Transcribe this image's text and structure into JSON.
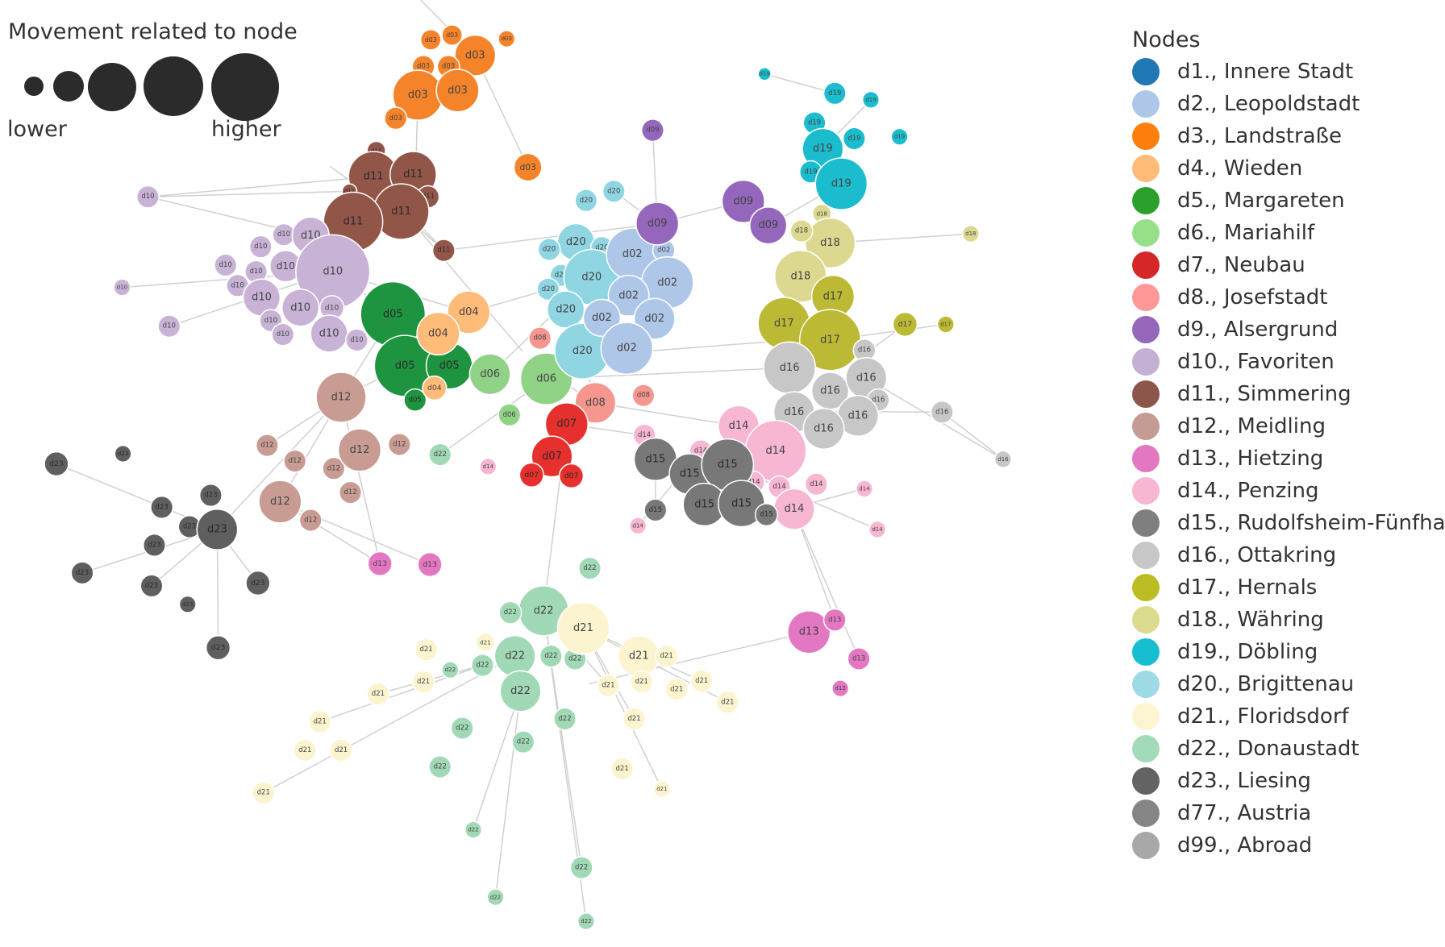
{
  "size_legend": {
    "title": "Movement related to node",
    "low_label": "lower",
    "high_label": "higher",
    "color": "#2b2b2b"
  },
  "legend": {
    "title": "Nodes",
    "items": [
      {
        "id": "d1",
        "label": "d1., Innere Stadt",
        "color": "#1f77b4"
      },
      {
        "id": "d2",
        "label": "d2., Leopoldstadt",
        "color": "#aec7e8"
      },
      {
        "id": "d3",
        "label": "d3., Landstraße",
        "color": "#ff7f0e"
      },
      {
        "id": "d4",
        "label": "d4., Wieden",
        "color": "#ffbb78"
      },
      {
        "id": "d5",
        "label": "d5., Margareten",
        "color": "#2ca02c"
      },
      {
        "id": "d6",
        "label": "d6., Mariahilf",
        "color": "#98df8a"
      },
      {
        "id": "d7",
        "label": "d7., Neubau",
        "color": "#d62728"
      },
      {
        "id": "d8",
        "label": "d8., Josefstadt",
        "color": "#ff9896"
      },
      {
        "id": "d9",
        "label": "d9., Alsergrund",
        "color": "#9467bd"
      },
      {
        "id": "d10",
        "label": "d10., Favoriten",
        "color": "#c5b0d5"
      },
      {
        "id": "d11",
        "label": "d11., Simmering",
        "color": "#8c564b"
      },
      {
        "id": "d12",
        "label": "d12., Meidling",
        "color": "#c49c94"
      },
      {
        "id": "d13",
        "label": "d13., Hietzing",
        "color": "#e377c2"
      },
      {
        "id": "d14",
        "label": "d14., Penzing",
        "color": "#f7b6d2"
      },
      {
        "id": "d15",
        "label": "d15., Rudolfsheim-Fünfhaus",
        "color": "#7f7f7f"
      },
      {
        "id": "d16",
        "label": "d16., Ottakring",
        "color": "#c7c7c7"
      },
      {
        "id": "d17",
        "label": "d17., Hernals",
        "color": "#bcbd22"
      },
      {
        "id": "d18",
        "label": "d18., Währing",
        "color": "#dbdb8d"
      },
      {
        "id": "d19",
        "label": "d19., Döbling",
        "color": "#17becf"
      },
      {
        "id": "d20",
        "label": "d20., Brigittenau",
        "color": "#9edae5"
      },
      {
        "id": "d21",
        "label": "d21., Floridsdorf",
        "color": "#fcf5cf"
      },
      {
        "id": "d22",
        "label": "d22., Donaustadt",
        "color": "#a3dab9"
      },
      {
        "id": "d23",
        "label": "d23., Liesing",
        "color": "#636363"
      },
      {
        "id": "d77",
        "label": "d77., Austria",
        "color": "#858585"
      },
      {
        "id": "d99",
        "label": "d99., Abroad",
        "color": "#a8a8a8"
      }
    ]
  },
  "graph": {
    "node_labels": {
      "d02": "d02",
      "d03": "d03",
      "d04": "d04",
      "d05": "d05",
      "d06": "d06",
      "d07": "d07",
      "d08": "d08",
      "d09": "d09",
      "d10": "d10",
      "d11": "d11",
      "d12": "d12",
      "d13": "d13",
      "d14": "d14",
      "d15": "d15",
      "d16": "d16",
      "d17": "d17",
      "d18": "d18",
      "d19": "d19",
      "d20": "d20",
      "d21": "d21",
      "d22": "d22",
      "d23": "d23"
    },
    "node_colors": {
      "d02": "#aec7e8",
      "d03": "#f5832a",
      "d04": "#ffbb78",
      "d05": "#1e9440",
      "d06": "#90d286",
      "d07": "#e6302d",
      "d08": "#f5968f",
      "d09": "#9467bd",
      "d10": "#c8b3d6",
      "d11": "#925649",
      "d12": "#c99c93",
      "d13": "#e377c2",
      "d14": "#f7b6d2",
      "d15": "#787878",
      "d16": "#c7c7c7",
      "d17": "#bcb934",
      "d18": "#dcd88f",
      "d19": "#1bbccd",
      "d20": "#8fd5e2",
      "d21": "#fcf4cf",
      "d22": "#a1d9b6",
      "d23": "#5f5f5f"
    },
    "edge_color": "#d0d0d0"
  }
}
